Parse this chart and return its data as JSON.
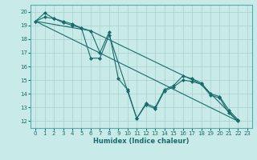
{
  "xlabel": "Humidex (Indice chaleur)",
  "bg_color": "#c8eae8",
  "grid_color": "#a8d0ce",
  "line_color": "#1a6b6b",
  "xlim": [
    -0.5,
    23.5
  ],
  "ylim": [
    11.5,
    20.5
  ],
  "xticks": [
    0,
    1,
    2,
    3,
    4,
    5,
    6,
    7,
    8,
    9,
    10,
    11,
    12,
    13,
    14,
    15,
    16,
    17,
    18,
    19,
    20,
    21,
    22,
    23
  ],
  "yticks": [
    12,
    13,
    14,
    15,
    16,
    17,
    18,
    19,
    20
  ],
  "series1_x": [
    0,
    1,
    2,
    3,
    4,
    5,
    6,
    7,
    8,
    9,
    10,
    11,
    12,
    13,
    14,
    15,
    16,
    17,
    18,
    19,
    20,
    21,
    22
  ],
  "series1_y": [
    19.3,
    19.9,
    19.5,
    19.3,
    19.1,
    18.8,
    18.6,
    17.0,
    18.5,
    15.1,
    14.3,
    12.2,
    13.3,
    13.0,
    14.3,
    14.6,
    15.3,
    15.1,
    14.8,
    14.0,
    13.8,
    12.8,
    12.1
  ],
  "series2_x": [
    0,
    1,
    2,
    3,
    4,
    5,
    6,
    7,
    8,
    10,
    11,
    12,
    13,
    14,
    15,
    16,
    17,
    18,
    19,
    20,
    21,
    22
  ],
  "series2_y": [
    19.3,
    19.6,
    19.5,
    19.2,
    19.0,
    18.8,
    16.6,
    16.6,
    18.3,
    14.2,
    12.2,
    13.2,
    12.9,
    14.2,
    14.5,
    15.0,
    14.9,
    14.7,
    13.9,
    13.7,
    12.6,
    12.0
  ],
  "series3_x": [
    0,
    22
  ],
  "series3_y": [
    19.3,
    12.0
  ],
  "series4_x": [
    0,
    6,
    18,
    22
  ],
  "series4_y": [
    19.3,
    18.6,
    14.7,
    12.0
  ]
}
